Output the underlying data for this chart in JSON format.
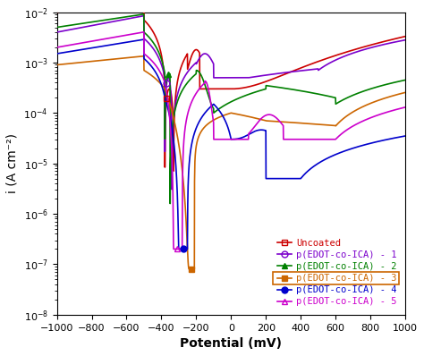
{
  "title": "",
  "xlabel": "Potential (mV)",
  "ylabel": "i (A cm⁻²)",
  "xlim": [
    -1000,
    1000
  ],
  "ylim_log": [
    -8,
    -2
  ],
  "xticks": [
    -1000,
    -800,
    -600,
    -400,
    -200,
    0,
    200,
    400,
    600,
    800,
    1000
  ],
  "series": [
    {
      "label": "Uncoated",
      "color": "#cc0000",
      "marker": "s",
      "markerfilled": false,
      "linewidth": 1.2
    },
    {
      "label": "p(EDOT-co-ICA) - 1",
      "color": "#7b00cc",
      "marker": "o",
      "markerfilled": false,
      "linewidth": 1.2
    },
    {
      "label": "p(EDOT-co-ICA) - 2",
      "color": "#008000",
      "marker": "^",
      "markerfilled": true,
      "linewidth": 1.2
    },
    {
      "label": "p(EDOT-co-ICA) - 3",
      "color": "#cc6600",
      "marker": "s",
      "markerfilled": true,
      "linewidth": 1.2,
      "box": true
    },
    {
      "label": "p(EDOT-co-ICA) - 4",
      "color": "#0000cc",
      "marker": "o",
      "markerfilled": true,
      "linewidth": 1.2
    },
    {
      "label": "p(EDOT-co-ICA) - 5",
      "color": "#cc00cc",
      "marker": "^",
      "markerfilled": false,
      "linewidth": 1.2
    }
  ],
  "legend_fontsize": 7.5,
  "legend_loc": "lower right",
  "axis_fontsize": 10,
  "tick_fontsize": 8,
  "background_color": "#ffffff",
  "box_color": "#cc6600",
  "marker_positions": [
    -370,
    -370,
    -360,
    -230,
    -275,
    -310
  ]
}
